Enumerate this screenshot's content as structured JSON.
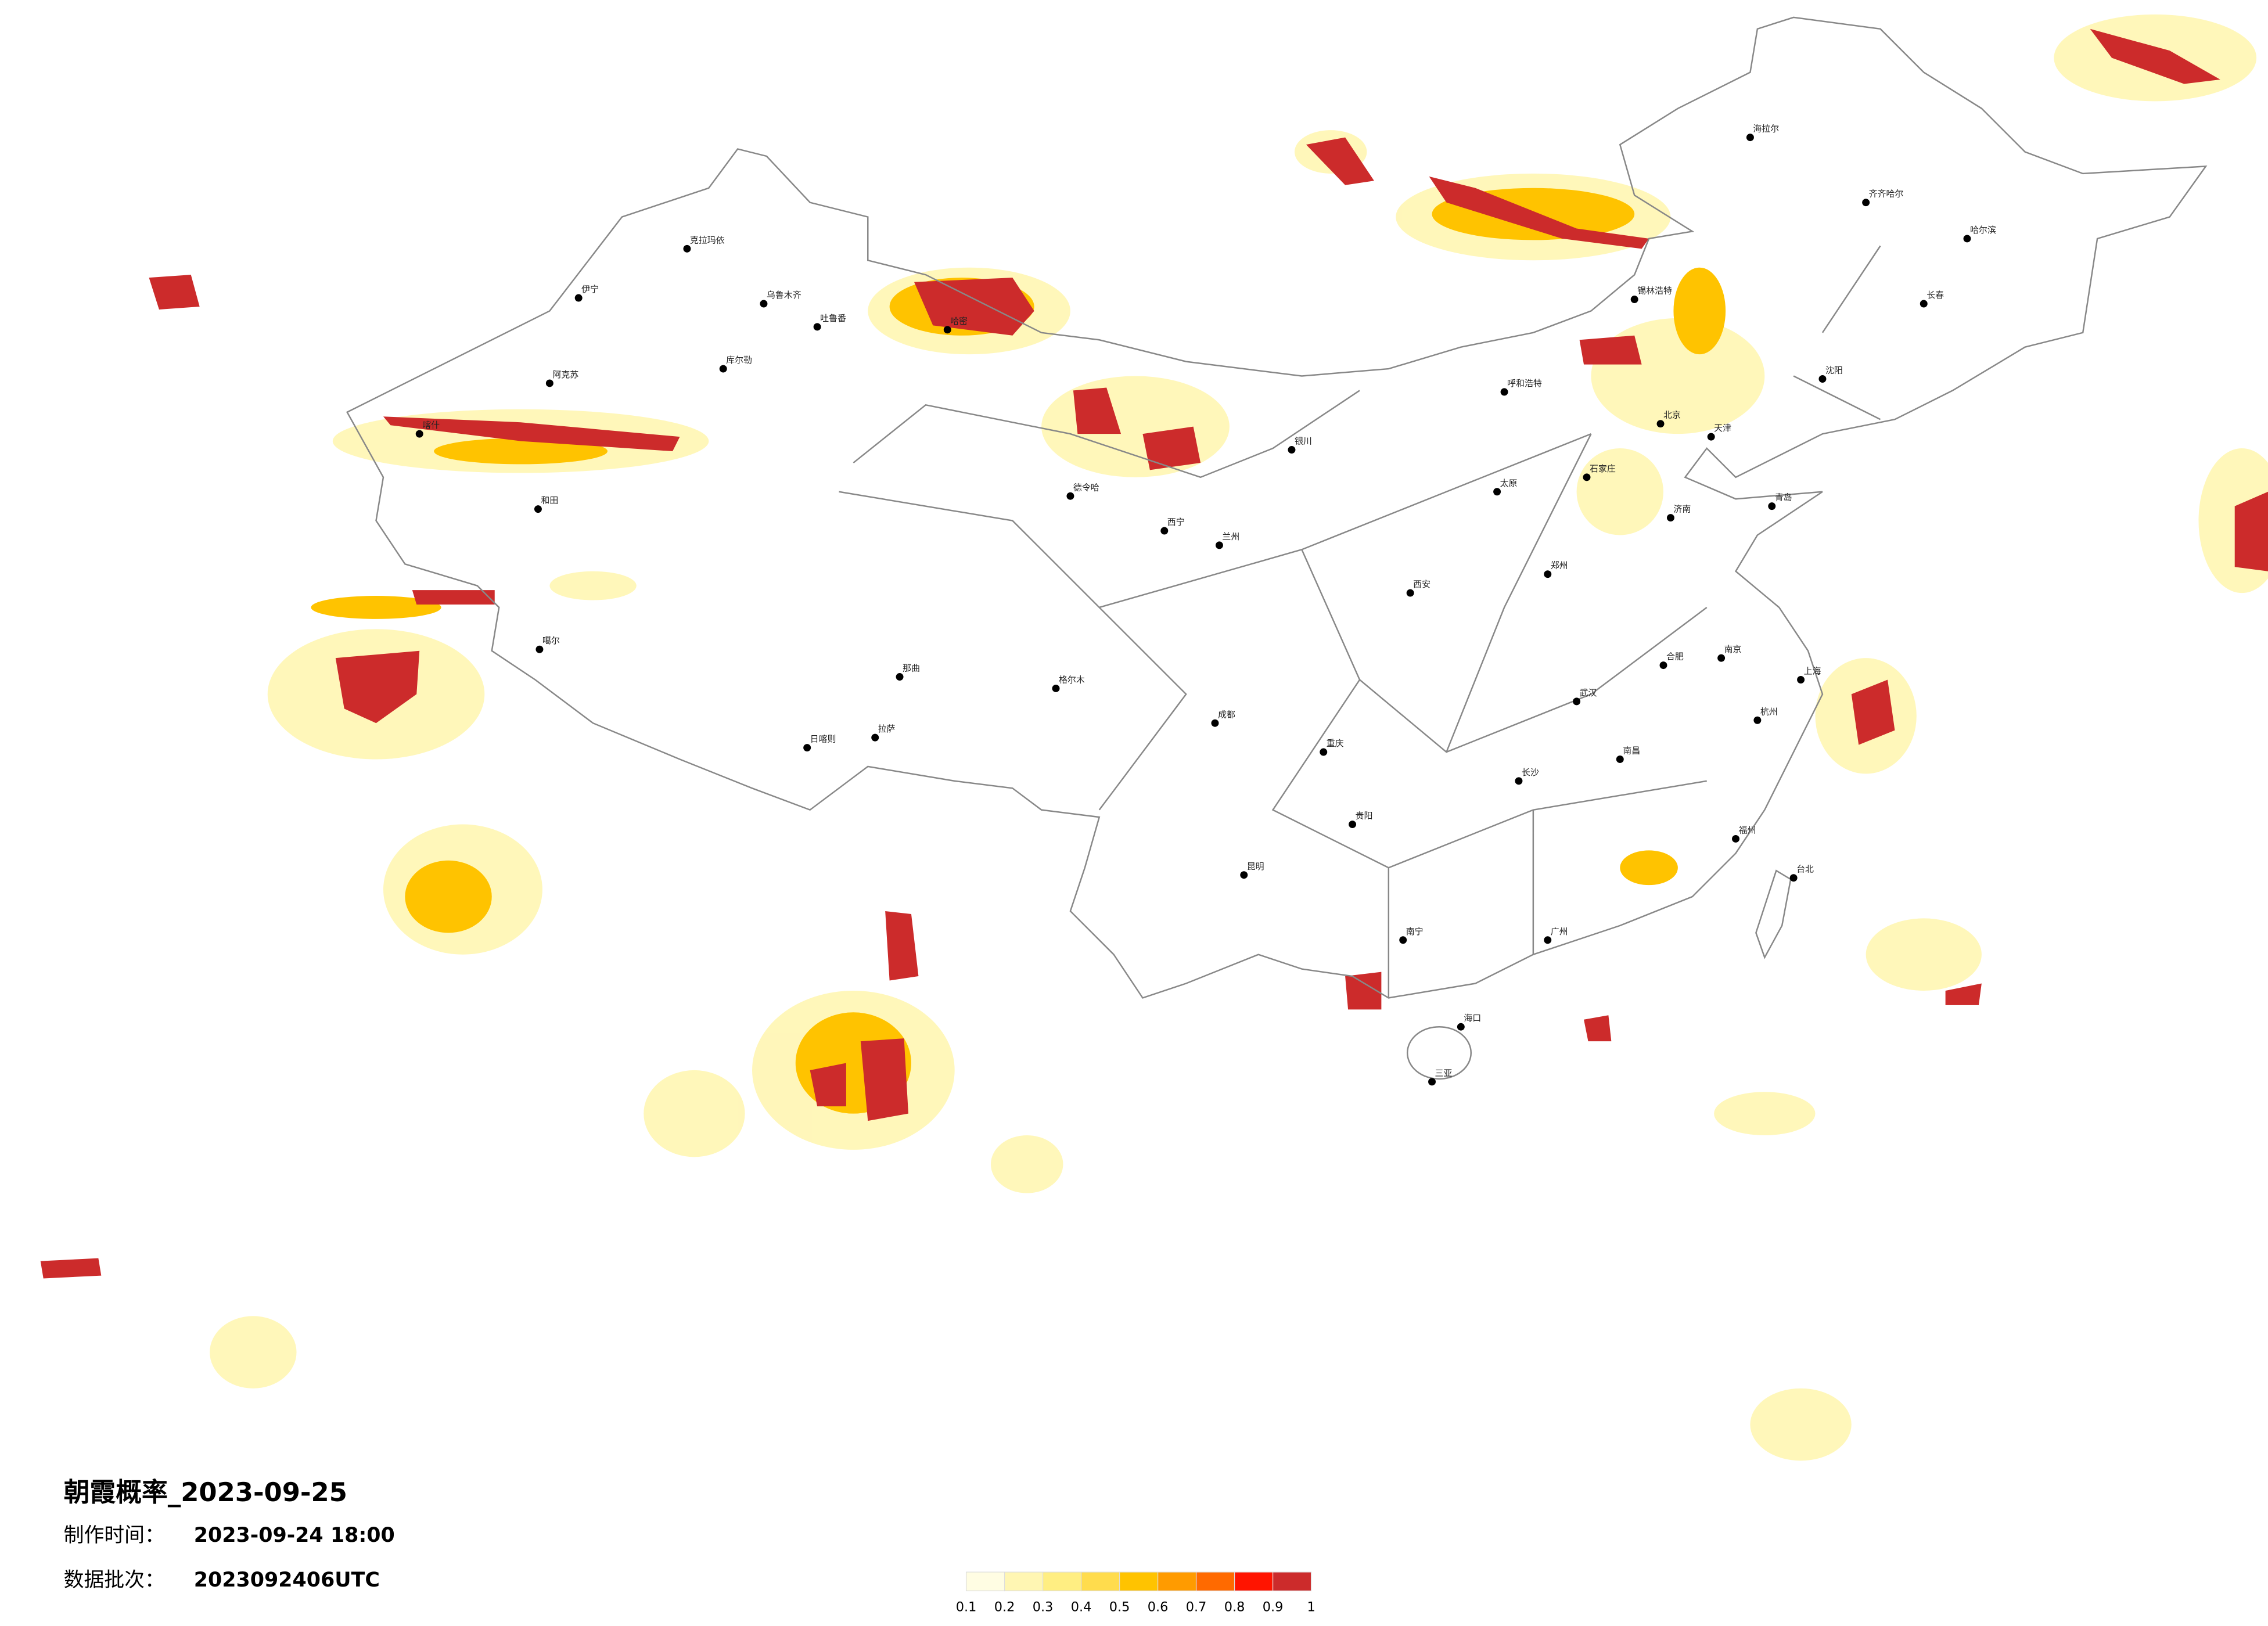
{
  "header": {
    "title": "朝霞概率_2023-09-25",
    "made_label": "制作时间：",
    "made_time": "2023-09-24 18:00",
    "batch_label": "数据批次：",
    "batch": "2023092406UTC"
  },
  "legend": {
    "ticks": [
      0.1,
      0.2,
      0.3,
      0.4,
      0.5,
      0.6,
      0.7,
      0.8,
      0.9,
      1
    ],
    "colors": [
      "#fffde3",
      "#fff6b3",
      "#ffee82",
      "#ffdc4d",
      "#ffc300",
      "#ff9b00",
      "#ff6a00",
      "#ff1400",
      "#cc2b2b"
    ]
  },
  "cities": [
    "克拉玛依",
    "伊宁",
    "乌鲁木齐",
    "吐鲁番",
    "阿克苏",
    "喀什",
    "和田",
    "库尔勒",
    "哈密",
    "噶尔",
    "日喀则",
    "拉萨",
    "那曲",
    "格尔木",
    "德令哈",
    "西宁",
    "兰州",
    "银川",
    "呼和浩特",
    "锡林浩特",
    "北京",
    "天津",
    "石家庄",
    "太原",
    "西安",
    "郑州",
    "济南",
    "武汉",
    "长沙",
    "南京",
    "上海",
    "杭州",
    "福州",
    "广州",
    "南宁",
    "海口",
    "三亚",
    "昆明",
    "贵阳",
    "成都",
    "重庆",
    "沈阳",
    "长春",
    "哈尔滨",
    "海拉尔",
    "齐齐哈尔",
    "台北",
    "南昌",
    "合肥",
    "青岛"
  ]
}
